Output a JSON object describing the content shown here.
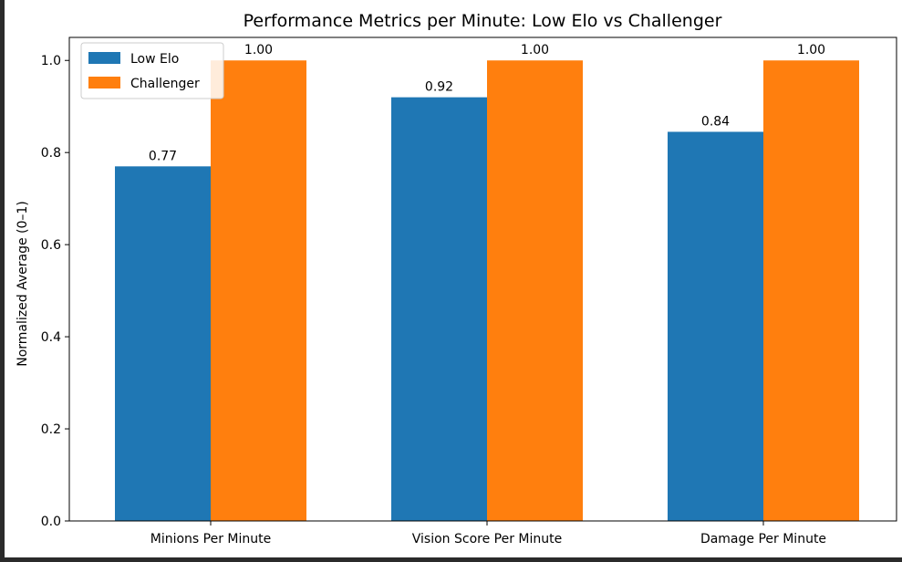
{
  "chart_data": {
    "type": "bar",
    "title": "Performance Metrics per Minute: Low Elo vs Challenger",
    "xlabel": "",
    "ylabel": "Normalized Average (0–1)",
    "ylim": [
      0,
      1.05
    ],
    "yticks": [
      "0.0",
      "0.2",
      "0.4",
      "0.6",
      "0.8",
      "1.0"
    ],
    "ytick_values": [
      0,
      0.2,
      0.4,
      0.6,
      0.8,
      1.0
    ],
    "categories": [
      "Minions Per Minute",
      "Vision Score Per Minute",
      "Damage Per Minute"
    ],
    "series": [
      {
        "name": "Low Elo",
        "color": "#1f77b4",
        "values": [
          0.77,
          0.92,
          0.845
        ],
        "labels": [
          "0.77",
          "0.92",
          "0.84"
        ]
      },
      {
        "name": "Challenger",
        "color": "#ff7f0e",
        "values": [
          1.0,
          1.0,
          1.0
        ],
        "labels": [
          "1.00",
          "1.00",
          "1.00"
        ]
      }
    ],
    "legend": "top-left",
    "grid": false
  }
}
